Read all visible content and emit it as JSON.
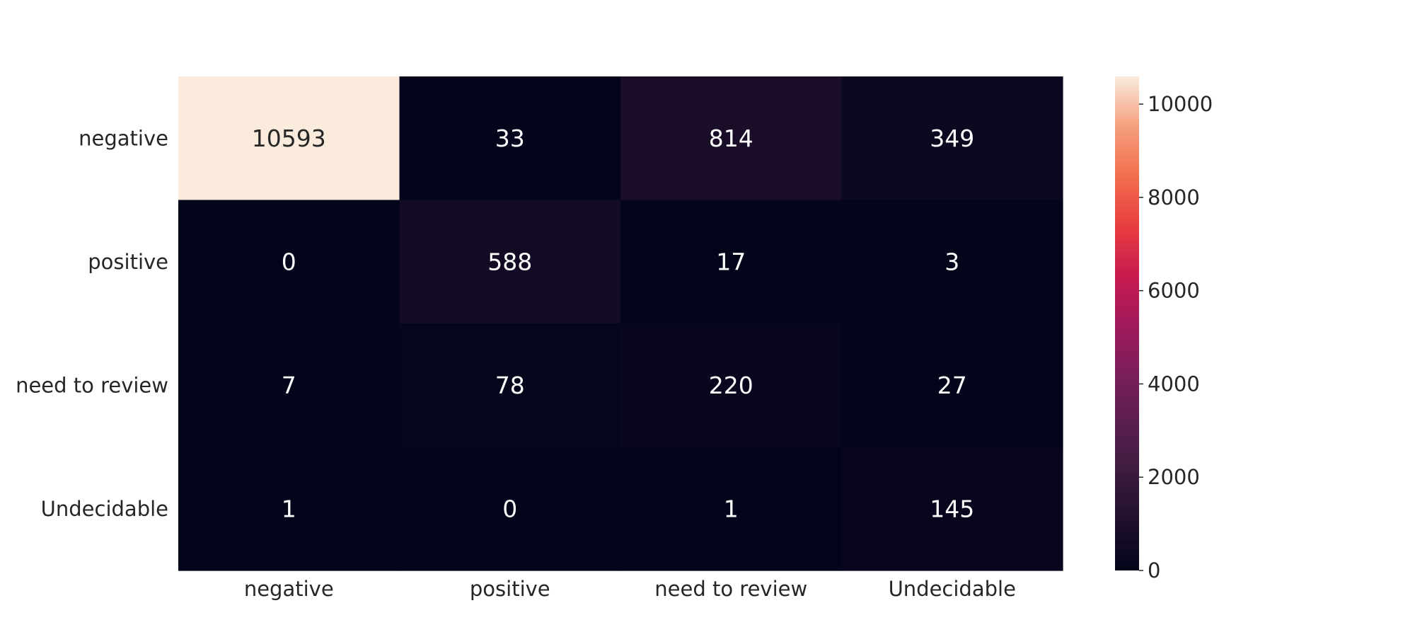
{
  "chart_data": {
    "type": "heatmap",
    "title": "",
    "xlabel": "",
    "ylabel": "",
    "x_categories": [
      "negative",
      "positive",
      "need to review",
      "Undecidable"
    ],
    "y_categories": [
      "negative",
      "positive",
      "need to review",
      "Undecidable"
    ],
    "values": [
      [
        10593,
        33,
        814,
        349
      ],
      [
        0,
        588,
        17,
        3
      ],
      [
        7,
        78,
        220,
        27
      ],
      [
        1,
        0,
        1,
        145
      ]
    ],
    "colormap": "rocket",
    "colorbar": {
      "range": [
        0,
        10593
      ],
      "ticks": [
        0,
        2000,
        4000,
        6000,
        8000,
        10000
      ],
      "tick_labels": [
        "0",
        "2000",
        "4000",
        "6000",
        "8000",
        "10000"
      ],
      "placement": "right"
    },
    "annotations": "cell values shown"
  }
}
